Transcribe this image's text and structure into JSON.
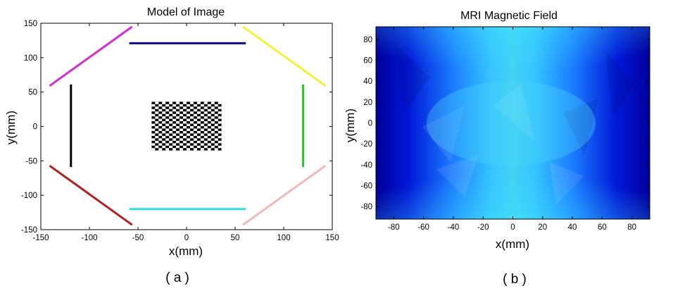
{
  "chart_data": [
    {
      "type": "scatter",
      "title": "Model of Image",
      "xlabel": "x(mm)",
      "ylabel": "y(mm)",
      "xlim": [
        -150,
        150
      ],
      "ylim": [
        -150,
        150
      ],
      "xticks": [
        -150,
        -100,
        -50,
        0,
        50,
        100,
        150
      ],
      "yticks": [
        -150,
        -100,
        -50,
        0,
        50,
        100,
        150
      ],
      "grid": false,
      "caption": "( a )",
      "segments": [
        {
          "name": "magenta",
          "color": "#d030d0",
          "x": [
            -141,
            -56
          ],
          "y": [
            59,
            145
          ]
        },
        {
          "name": "navy",
          "color": "#0a0a8c",
          "x": [
            -59,
            61
          ],
          "y": [
            121,
            121
          ]
        },
        {
          "name": "yellow",
          "color": "#f2f23a",
          "x": [
            58,
            143
          ],
          "y": [
            145,
            59
          ]
        },
        {
          "name": "black",
          "color": "#000000",
          "x": [
            -119,
            -119
          ],
          "y": [
            61,
            -59
          ]
        },
        {
          "name": "green",
          "color": "#22cc22",
          "x": [
            120,
            120
          ],
          "y": [
            61,
            -59
          ]
        },
        {
          "name": "dark-red",
          "color": "#b02020",
          "x": [
            -141,
            -56
          ],
          "y": [
            -57,
            -143
          ]
        },
        {
          "name": "cyan",
          "color": "#30e0e0",
          "x": [
            -59,
            61
          ],
          "y": [
            -120,
            -120
          ]
        },
        {
          "name": "pink",
          "color": "#f2b8b8",
          "x": [
            58,
            143
          ],
          "y": [
            -143,
            -57
          ]
        }
      ],
      "checkerboard": {
        "x": [
          -36,
          36
        ],
        "y": [
          -35,
          36
        ],
        "cols": 20,
        "rows": 20
      }
    },
    {
      "type": "heatmap",
      "title": "MRI Magnetic Field",
      "xlabel": "x(mm)",
      "ylabel": "y(mm)",
      "xlim": [
        -92,
        92
      ],
      "ylim": [
        -92,
        92
      ],
      "xticks": [
        -80,
        -60,
        -40,
        -20,
        0,
        20,
        40,
        60,
        80
      ],
      "yticks": [
        -80,
        -60,
        -40,
        -20,
        0,
        20,
        40,
        60,
        80
      ],
      "colormap": "jet",
      "caption": "( b )",
      "description_values": {
        "top_center": "max",
        "bottom_center": "max",
        "left_edge": "min",
        "right_edge": "min"
      }
    }
  ]
}
